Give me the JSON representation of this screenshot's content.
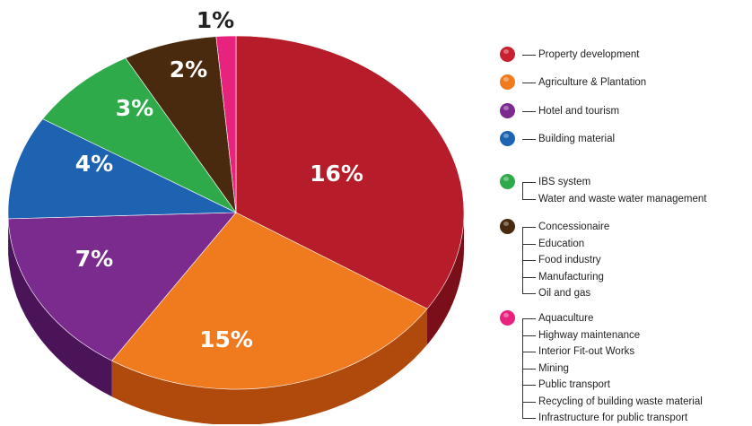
{
  "chart_data": {
    "type": "pie",
    "slices": [
      {
        "label": "16%",
        "value": 16,
        "color": "#b71c2a",
        "side": "#7a0f1a"
      },
      {
        "label": "15%",
        "value": 15,
        "color": "#f07a1e",
        "side": "#b04a0c"
      },
      {
        "label": "7%",
        "value": 7,
        "color": "#7b2a8e",
        "side": "#4b1458"
      },
      {
        "label": "4%",
        "value": 4,
        "color": "#1d63b2",
        "side": "#0f3e74"
      },
      {
        "label": "3%",
        "value": 3,
        "color": "#2eaa4a",
        "side": "#1b6d2d"
      },
      {
        "label": "2%",
        "value": 2,
        "color": "#4a2a0e",
        "side": "#2c1806"
      },
      {
        "label": "1%",
        "value": 1,
        "color": "#e8237e",
        "side": "#9b1150"
      }
    ],
    "legend": [
      {
        "color": "#c8202e",
        "items": [
          "Property development"
        ]
      },
      {
        "color": "#f07a1e",
        "items": [
          "Agriculture & Plantation"
        ]
      },
      {
        "color": "#7b2a8e",
        "items": [
          "Hotel and tourism"
        ]
      },
      {
        "color": "#1d63b2",
        "items": [
          "Building material"
        ]
      },
      {
        "color": "#2eaa4a",
        "items": [
          "IBS system",
          "Water and waste water management"
        ]
      },
      {
        "color": "#4a2a0e",
        "items": [
          "Concessionaire",
          "Education",
          "Food industry",
          "Manufacturing",
          "Oil and gas"
        ]
      },
      {
        "color": "#e8237e",
        "items": [
          "Aquaculture",
          "Highway maintenance",
          "Interior Fit-out Works",
          "Mining",
          "Public transport",
          "Recycling of building waste material",
          "Infrastructure for public transport"
        ]
      }
    ]
  }
}
